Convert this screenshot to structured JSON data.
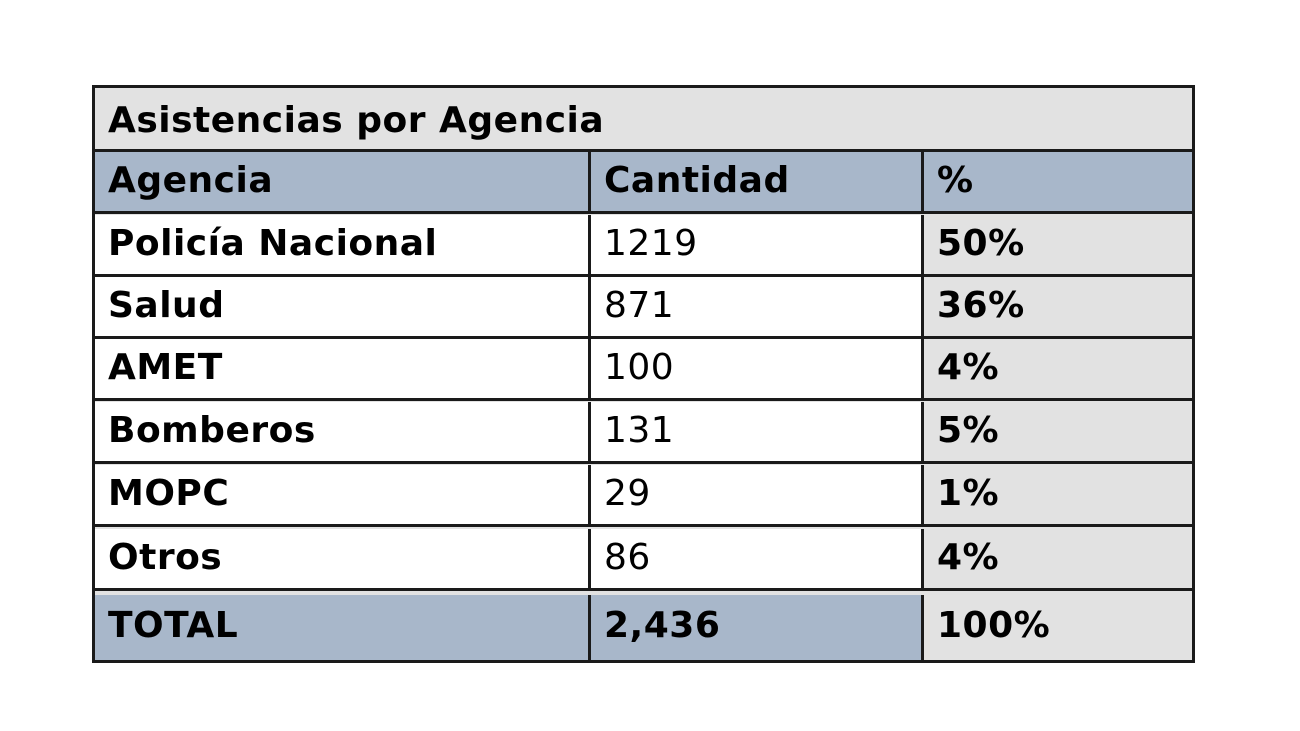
{
  "table": {
    "title": "Asistencias por Agencia",
    "headers": [
      "Agencia",
      "Cantidad",
      "%"
    ],
    "rows": [
      {
        "agencia": "Policía Nacional",
        "cantidad": "1219",
        "pct": "50%"
      },
      {
        "agencia": "Salud",
        "cantidad": "871",
        "pct": "36%"
      },
      {
        "agencia": "AMET",
        "cantidad": "100",
        "pct": "4%"
      },
      {
        "agencia": "Bomberos",
        "cantidad": "131",
        "pct": "5%"
      },
      {
        "agencia": "MOPC",
        "cantidad": "29",
        "pct": "1%"
      },
      {
        "agencia": "Otros",
        "cantidad": "86",
        "pct": "4%"
      }
    ],
    "total": {
      "label": "TOTAL",
      "cantidad": "2,436",
      "pct": "100%"
    }
  },
  "colors": {
    "header_bg": "#a8b7ca",
    "title_bg": "#e2e2e2",
    "pct_bg": "#e2e2e2",
    "cell_bg": "#ffffff",
    "border": "#1a1a1a"
  },
  "chart_data": {
    "type": "table",
    "title": "Asistencias por Agencia",
    "columns": [
      "Agencia",
      "Cantidad",
      "%"
    ],
    "rows": [
      [
        "Policía Nacional",
        1219,
        "50%"
      ],
      [
        "Salud",
        871,
        "36%"
      ],
      [
        "AMET",
        100,
        "4%"
      ],
      [
        "Bomberos",
        131,
        "5%"
      ],
      [
        "MOPC",
        29,
        "1%"
      ],
      [
        "Otros",
        86,
        "4%"
      ],
      [
        "TOTAL",
        2436,
        "100%"
      ]
    ]
  }
}
